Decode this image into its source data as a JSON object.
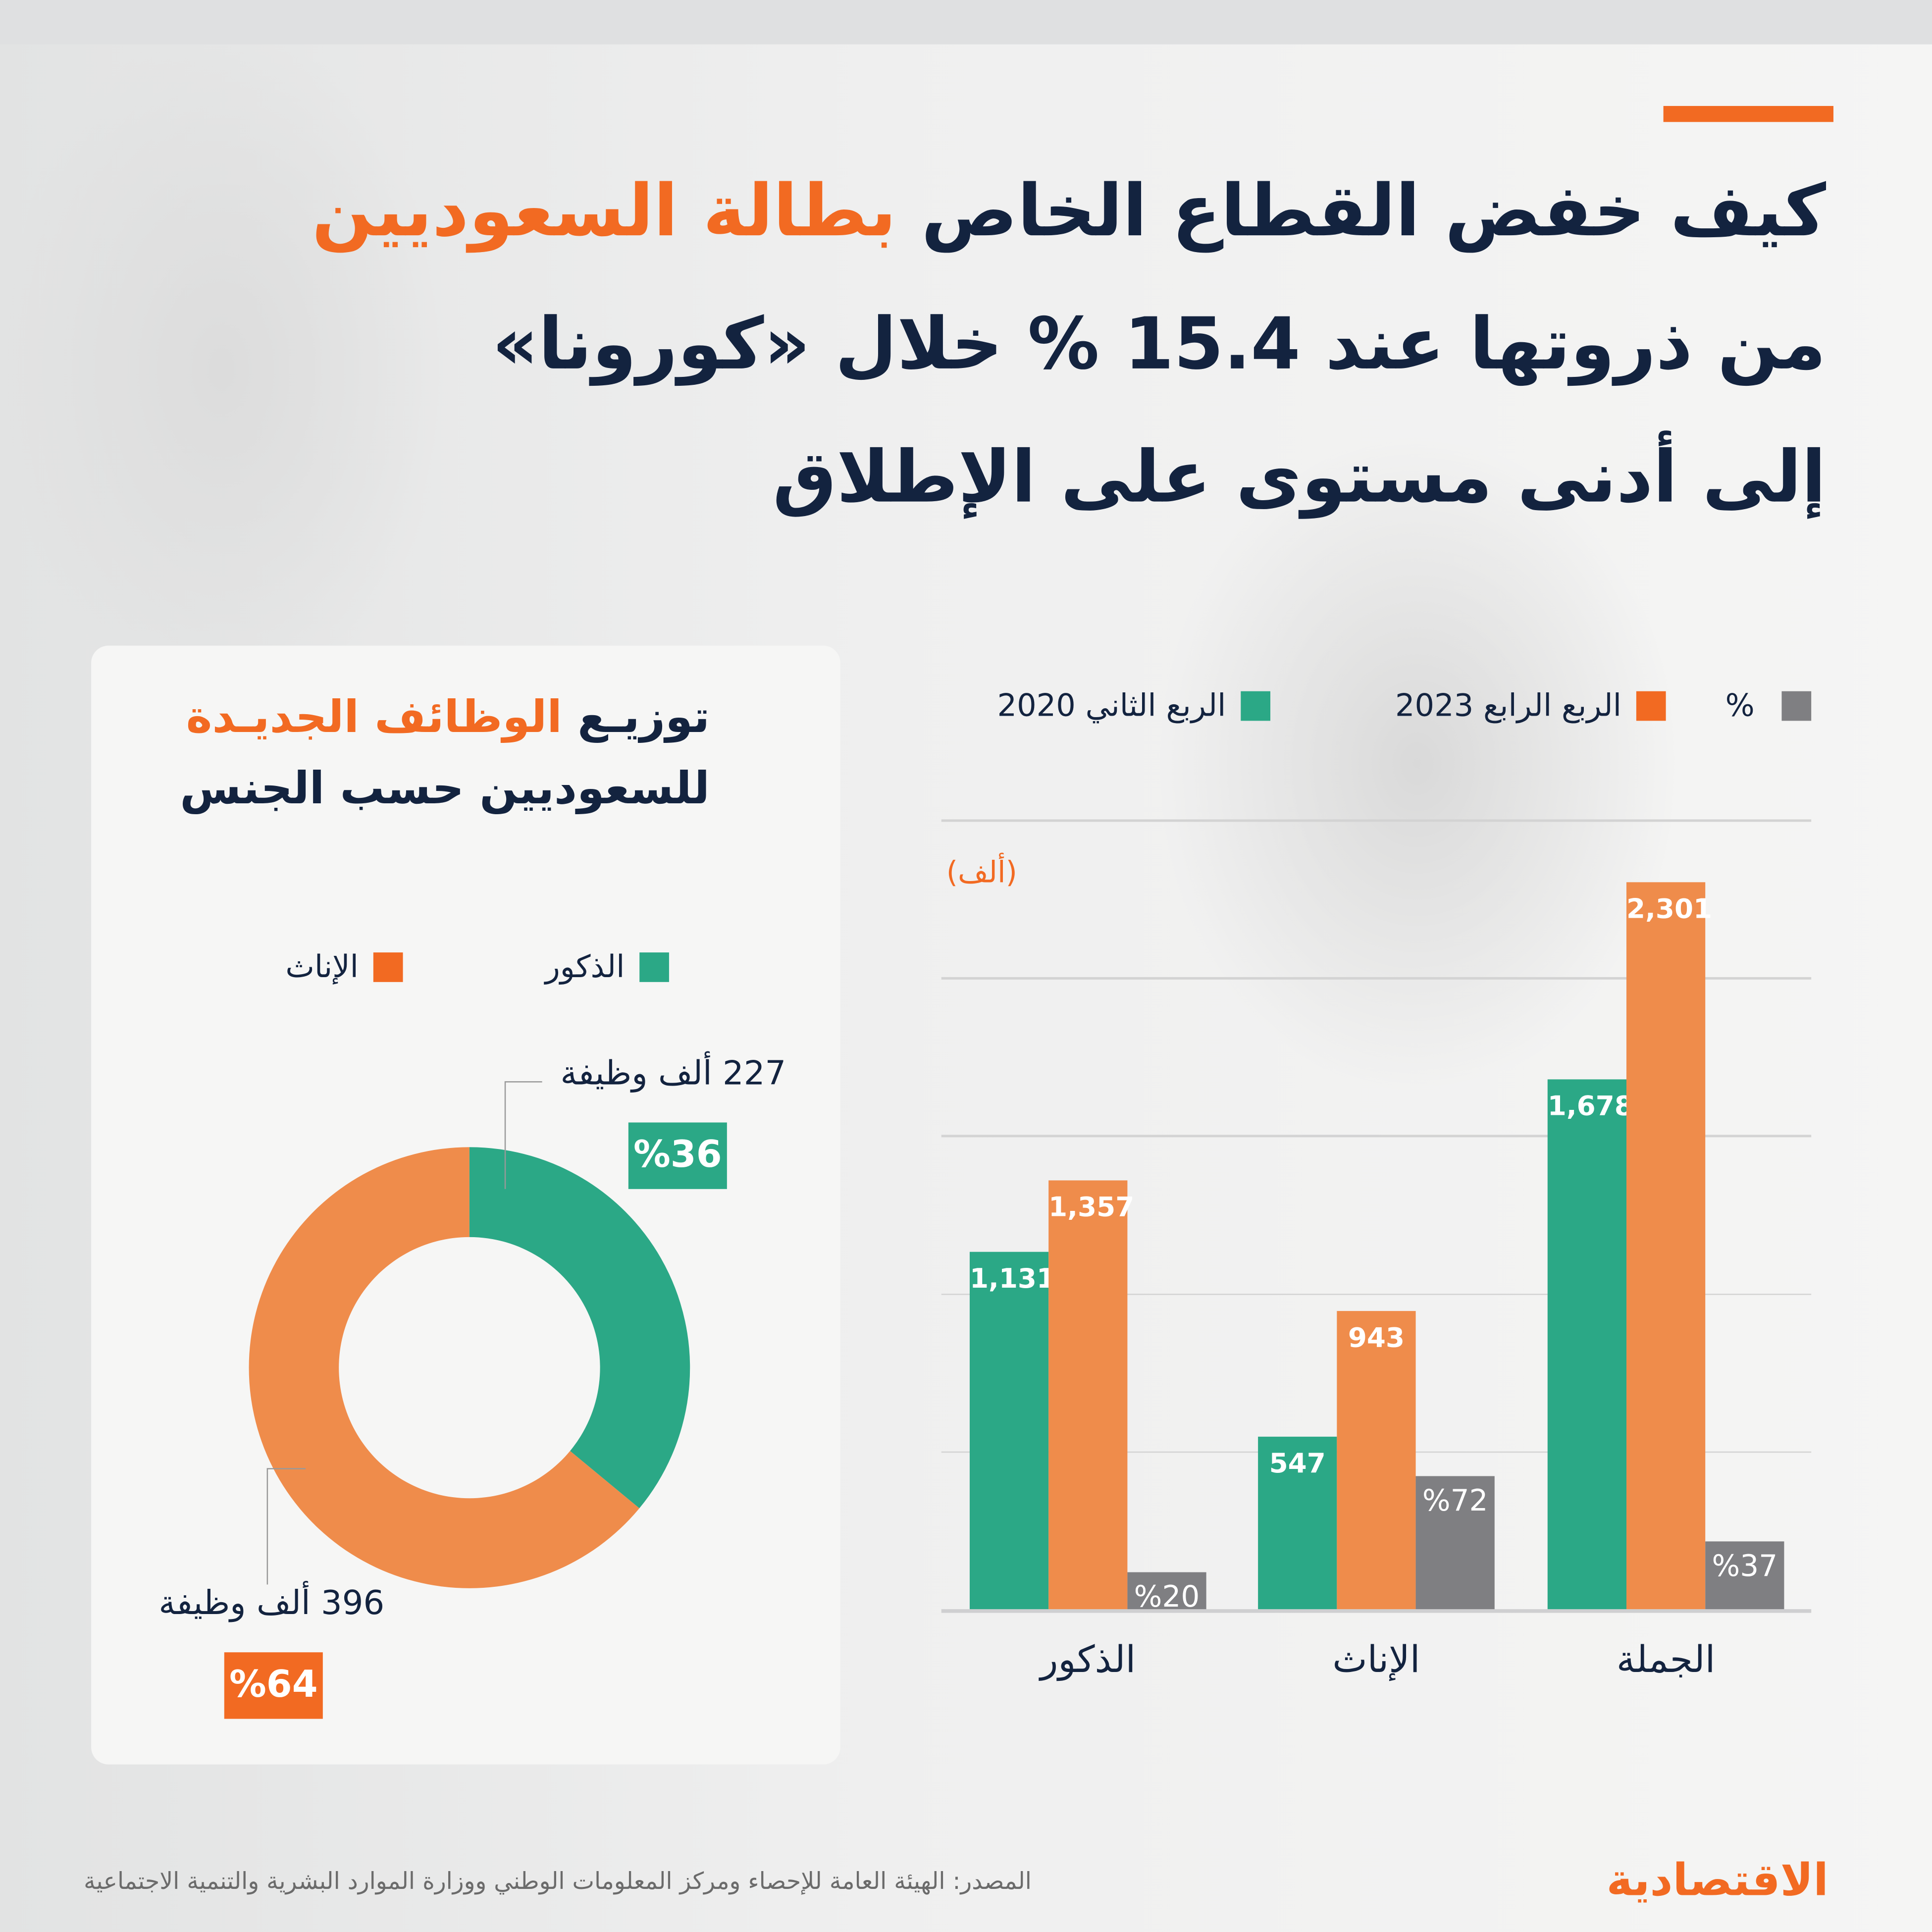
{
  "title": {
    "line1_dark": "كيف خفض القطاع الخاص",
    "line1_orange": "بطالة السعوديين",
    "line2": "من ذروتها عند 15.4 % خلال «كورونا»",
    "line3": "إلى أدنى مستوى على الإطلاق"
  },
  "colors": {
    "green": "#2ba886",
    "orange": "#ef8c4b",
    "orange_strong": "#f26a22",
    "gray": "#7f7f82",
    "navy": "#13233f"
  },
  "donut": {
    "title_dark": "توزيـع",
    "title_orange": "الوظائف الجديـدة",
    "title_line2": "للسعوديين حسب الجنس",
    "legend": [
      {
        "label": "الذكور",
        "color": "#2ba886"
      },
      {
        "label": "الإناث",
        "color": "#f26a22"
      }
    ],
    "slices": [
      {
        "name": "الذكور",
        "value": 36,
        "count_label": "227 ألف وظيفة",
        "pct_label": "%36"
      },
      {
        "name": "الإناث",
        "value": 64,
        "count_label": "396 ألف وظيفة",
        "pct_label": "%64"
      }
    ]
  },
  "chart_data": {
    "type": "bar",
    "unit_label": "(ألف)",
    "ylim": [
      0,
      2500
    ],
    "grid": true,
    "legend_position": "top",
    "categories": [
      "الذكور",
      "الإناث",
      "الجملة"
    ],
    "series": [
      {
        "name": "الربع الثاني 2020",
        "color": "#2ba886",
        "values": [
          1131,
          547,
          1678
        ],
        "labels": [
          "1,131",
          "547",
          "1,678"
        ]
      },
      {
        "name": "الربع الرابع 2023",
        "color": "#ef8c4b",
        "values": [
          1357,
          943,
          2301
        ],
        "labels": [
          "1,357",
          "943",
          "2,301"
        ]
      },
      {
        "name": "%",
        "color": "#7f7f82",
        "values": [
          20,
          72,
          37
        ],
        "labels": [
          "%20",
          "%72",
          "%37"
        ]
      }
    ]
  },
  "footer": {
    "source": "المصدر: الهيئة العامة للإحصاء ومركز المعلومات الوطني ووزارة الموارد البشرية والتنمية الاجتماعية",
    "logo": "الاقتصادية"
  }
}
